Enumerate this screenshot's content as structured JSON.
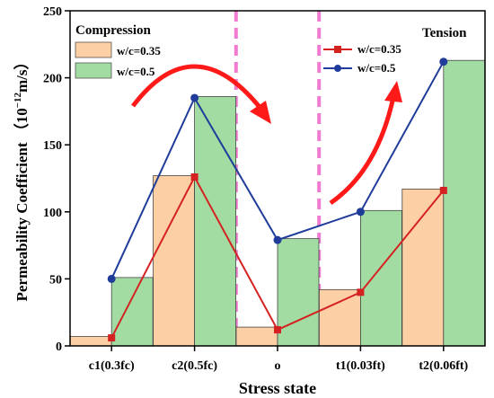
{
  "chart_data": {
    "type": "bar+line",
    "categories": [
      "c1(0.3fc)",
      "c2(0.5fc)",
      "o",
      "t1(0.03ft)",
      "t2(0.06ft)"
    ],
    "bar_series": [
      {
        "name": "w/c=0.35",
        "values": [
          7,
          127,
          14,
          42,
          117
        ],
        "color": "#FDCFA4"
      },
      {
        "name": "w/c=0.5",
        "values": [
          51,
          186,
          80,
          101,
          213
        ],
        "color": "#A3DCA3"
      }
    ],
    "line_series": [
      {
        "name": "w/c=0.35",
        "values": [
          6,
          126,
          12,
          40,
          116
        ],
        "color": "#D42222",
        "marker": "square"
      },
      {
        "name": "w/c=0.5",
        "values": [
          50,
          185,
          79,
          100,
          212
        ],
        "color": "#1F3C9A",
        "marker": "circle"
      }
    ],
    "xlabel": "Stress state",
    "ylabel_main": "Permeability Coefficient （10",
    "ylabel_exp": "−12",
    "ylabel_unit": "m/s）",
    "ylim": [
      0,
      250
    ],
    "yticks": [
      0,
      50,
      100,
      150,
      200,
      250
    ],
    "annotations": {
      "compression": "Compression",
      "tension": "Tension"
    },
    "divider_color": "#F07BD0",
    "arrow_color": "#FF1A1A",
    "legend_placement": [
      "top-left",
      "top-right"
    ]
  }
}
